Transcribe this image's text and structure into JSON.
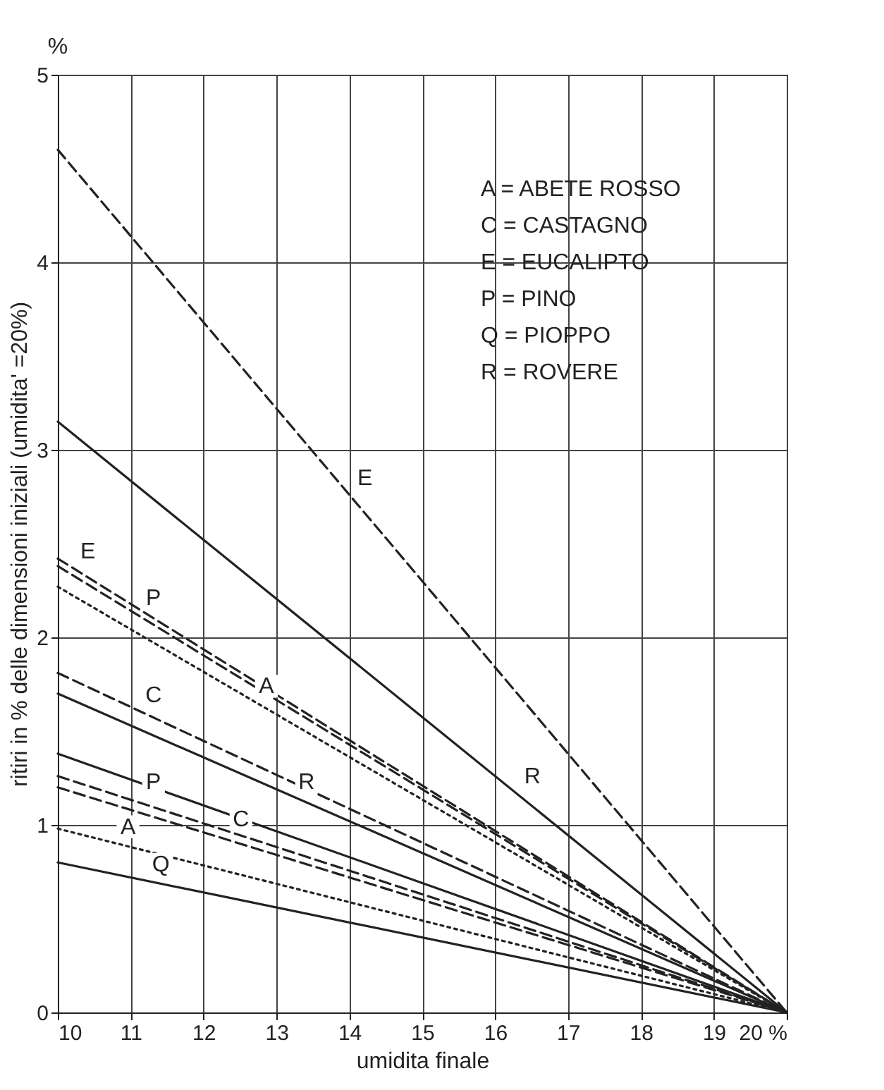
{
  "chart_data": {
    "type": "line",
    "xlabel": "umidita finale",
    "ylabel": "ritiri in % delle dimensioni iniziali (umidita' =20%)",
    "x": [
      10,
      20
    ],
    "xlim": [
      10,
      20
    ],
    "ylim": [
      0,
      5
    ],
    "xticks": [
      10,
      11,
      12,
      13,
      14,
      15,
      16,
      17,
      18,
      19,
      {
        "value": 20,
        "label": "20 %"
      }
    ],
    "yticks": [
      0,
      1,
      2,
      3,
      4,
      5
    ],
    "grid": true,
    "marker": "none",
    "series": [
      {
        "color": "#222222",
        "line_style": "dashed",
        "values": [
          4.6,
          0
        ]
      },
      {
        "color": "#222222",
        "line_style": "solid",
        "values": [
          3.15,
          0
        ]
      },
      {
        "color": "#222222",
        "line_style": "dashed",
        "values": [
          2.42,
          0
        ]
      },
      {
        "color": "#222222",
        "line_style": "dashed",
        "values": [
          2.38,
          0
        ]
      },
      {
        "color": "#222222",
        "line_style": "dotted",
        "values": [
          2.27,
          0
        ]
      },
      {
        "color": "#222222",
        "line_style": "dashed",
        "values": [
          1.81,
          0
        ]
      },
      {
        "color": "#222222",
        "line_style": "solid",
        "values": [
          1.7,
          0
        ]
      },
      {
        "color": "#222222",
        "line_style": "solid",
        "values": [
          1.38,
          0
        ]
      },
      {
        "color": "#222222",
        "line_style": "dashed",
        "values": [
          1.26,
          0
        ]
      },
      {
        "color": "#222222",
        "line_style": "dashed",
        "values": [
          1.2,
          0
        ]
      },
      {
        "color": "#222222",
        "line_style": "dotted",
        "values": [
          0.98,
          0
        ]
      },
      {
        "color": "#222222",
        "line_style": "solid",
        "values": [
          0.8,
          0
        ]
      }
    ],
    "annotations": [
      "%",
      "A = ABETE ROSSO",
      "C = CASTAGNO",
      "E = EUCALIPTO",
      "P = PINO",
      "Q = PIOPPO",
      "R = ROVERE",
      {
        "text": "E",
        "x": 14,
        "y": 2.76
      },
      {
        "text": "R",
        "x": 16.3,
        "y": 1.17
      },
      {
        "text": "E",
        "x": 10.2,
        "y": 2.37
      },
      {
        "text": "P",
        "x": 11.1,
        "y": 2.12
      },
      {
        "text": "C",
        "x": 11.1,
        "y": 1.6
      },
      {
        "text": "A",
        "x": 12.65,
        "y": 1.65
      },
      {
        "text": "R",
        "x": 13.2,
        "y": 1.14
      },
      {
        "text": "P",
        "x": 11.1,
        "y": 1.14
      },
      {
        "text": "C",
        "x": 12.3,
        "y": 0.94
      },
      {
        "text": "A",
        "x": 10.75,
        "y": 0.9
      },
      {
        "text": "Q",
        "x": 11.2,
        "y": 0.7
      }
    ]
  }
}
